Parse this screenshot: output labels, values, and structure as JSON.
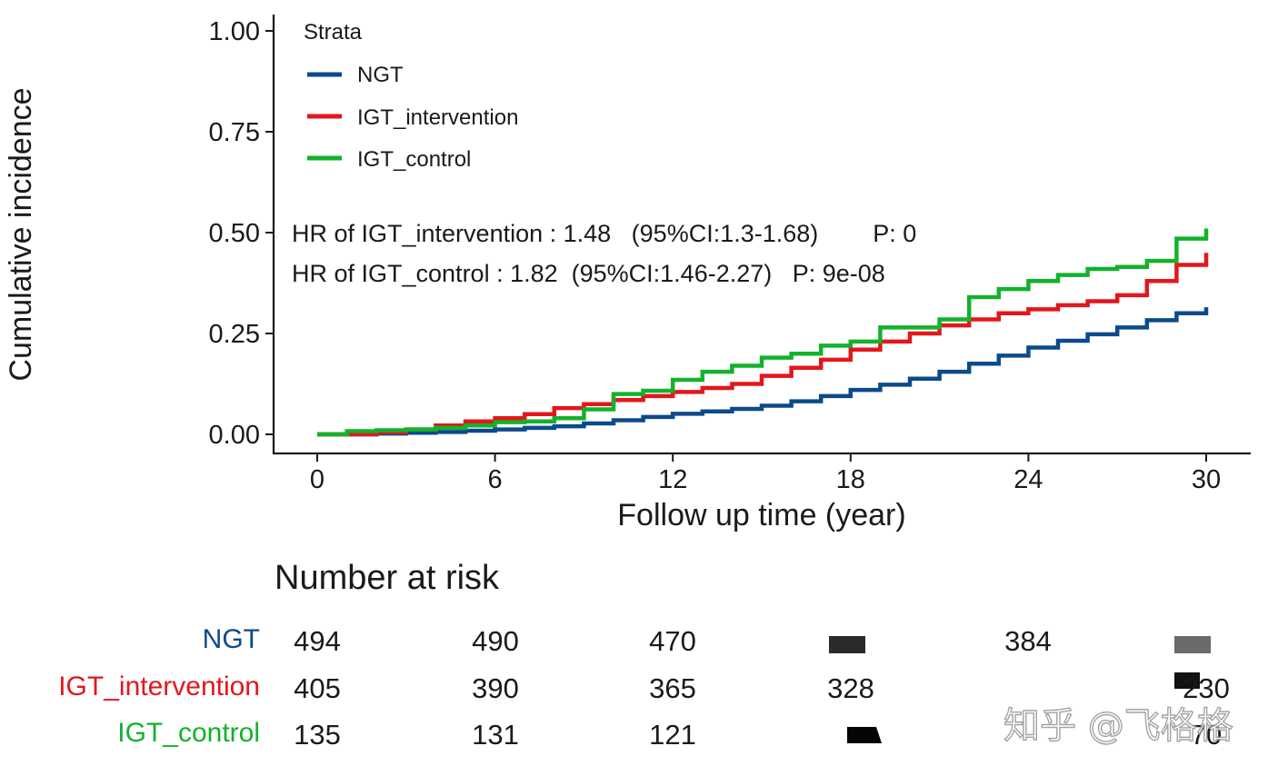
{
  "chart_data": {
    "type": "line",
    "subtype": "cumulative incidence step curves",
    "title": "",
    "xlabel": "Follow up time (year)",
    "ylabel": "Cumulative incidence",
    "xlim": [
      0,
      30
    ],
    "ylim": [
      0,
      1
    ],
    "x_ticks": [
      0,
      6,
      12,
      18,
      24,
      30
    ],
    "x_tick_labels": [
      "0",
      "6",
      "12",
      "18",
      "24",
      "30"
    ],
    "y_ticks": [
      0,
      0.25,
      0.5,
      0.75,
      1
    ],
    "y_tick_labels": [
      "0.00",
      "0.25",
      "0.50",
      "0.75",
      "1.00"
    ],
    "grid": false,
    "legend": {
      "title": "Strata",
      "placement": "top-left",
      "entries": [
        "NGT",
        "IGT_intervention",
        "IGT_control"
      ]
    },
    "annotations": [
      {
        "id": "hr_intervention",
        "text": "HR of IGT_intervention : 1.48   (95%CI:1.3-1.68)        P: 0"
      },
      {
        "id": "hr_control",
        "text": "HR of IGT_control : 1.82  (95%CI:1.46-2.27)   P: 9e-08"
      }
    ],
    "series": [
      {
        "name": "NGT",
        "color": "#0b4a8b",
        "x": [
          0,
          1,
          2,
          3,
          4,
          5,
          6,
          7,
          8,
          9,
          10,
          11,
          12,
          13,
          14,
          15,
          16,
          17,
          18,
          19,
          20,
          21,
          22,
          23,
          24,
          25,
          26,
          27,
          28,
          29,
          30
        ],
        "y": [
          0,
          0,
          0.002,
          0.004,
          0.006,
          0.009,
          0.012,
          0.016,
          0.02,
          0.027,
          0.035,
          0.043,
          0.051,
          0.057,
          0.063,
          0.071,
          0.082,
          0.095,
          0.11,
          0.123,
          0.138,
          0.155,
          0.175,
          0.195,
          0.215,
          0.232,
          0.248,
          0.265,
          0.283,
          0.3,
          0.315
        ]
      },
      {
        "name": "IGT_intervention",
        "color": "#e4161c",
        "x": [
          0,
          1,
          2,
          3,
          4,
          5,
          6,
          7,
          8,
          9,
          10,
          11,
          12,
          13,
          14,
          15,
          16,
          17,
          18,
          19,
          20,
          21,
          22,
          23,
          24,
          25,
          26,
          27,
          28,
          29,
          30
        ],
        "y": [
          0,
          0,
          0.005,
          0.012,
          0.022,
          0.032,
          0.04,
          0.05,
          0.065,
          0.075,
          0.085,
          0.095,
          0.105,
          0.115,
          0.125,
          0.145,
          0.165,
          0.185,
          0.21,
          0.23,
          0.25,
          0.27,
          0.285,
          0.3,
          0.31,
          0.32,
          0.33,
          0.345,
          0.38,
          0.42,
          0.45
        ]
      },
      {
        "name": "IGT_control",
        "color": "#12b22c",
        "x": [
          0,
          1,
          2,
          3,
          4,
          5,
          6,
          7,
          8,
          9,
          10,
          11,
          12,
          13,
          14,
          15,
          16,
          17,
          18,
          19,
          20,
          21,
          22,
          23,
          24,
          25,
          26,
          27,
          28,
          29,
          30
        ],
        "y": [
          0,
          0.008,
          0.01,
          0.012,
          0.016,
          0.022,
          0.03,
          0.032,
          0.04,
          0.062,
          0.1,
          0.108,
          0.135,
          0.155,
          0.17,
          0.19,
          0.2,
          0.22,
          0.23,
          0.265,
          0.265,
          0.285,
          0.34,
          0.36,
          0.38,
          0.395,
          0.41,
          0.415,
          0.43,
          0.485,
          0.51
        ]
      }
    ]
  },
  "risk_table": {
    "title": "Number at risk",
    "rows": [
      {
        "name": "NGT",
        "color": "#0b4a8b",
        "values": [
          "494",
          "490",
          "470",
          "",
          "384",
          ""
        ]
      },
      {
        "name": "IGT_intervention",
        "color": "#e4161c",
        "values": [
          "405",
          "390",
          "365",
          "328",
          "",
          "230"
        ]
      },
      {
        "name": "IGT_control",
        "color": "#12b22c",
        "values": [
          "135",
          "131",
          "121",
          "",
          "",
          "70"
        ]
      }
    ]
  },
  "watermark": "知乎 @飞格格"
}
